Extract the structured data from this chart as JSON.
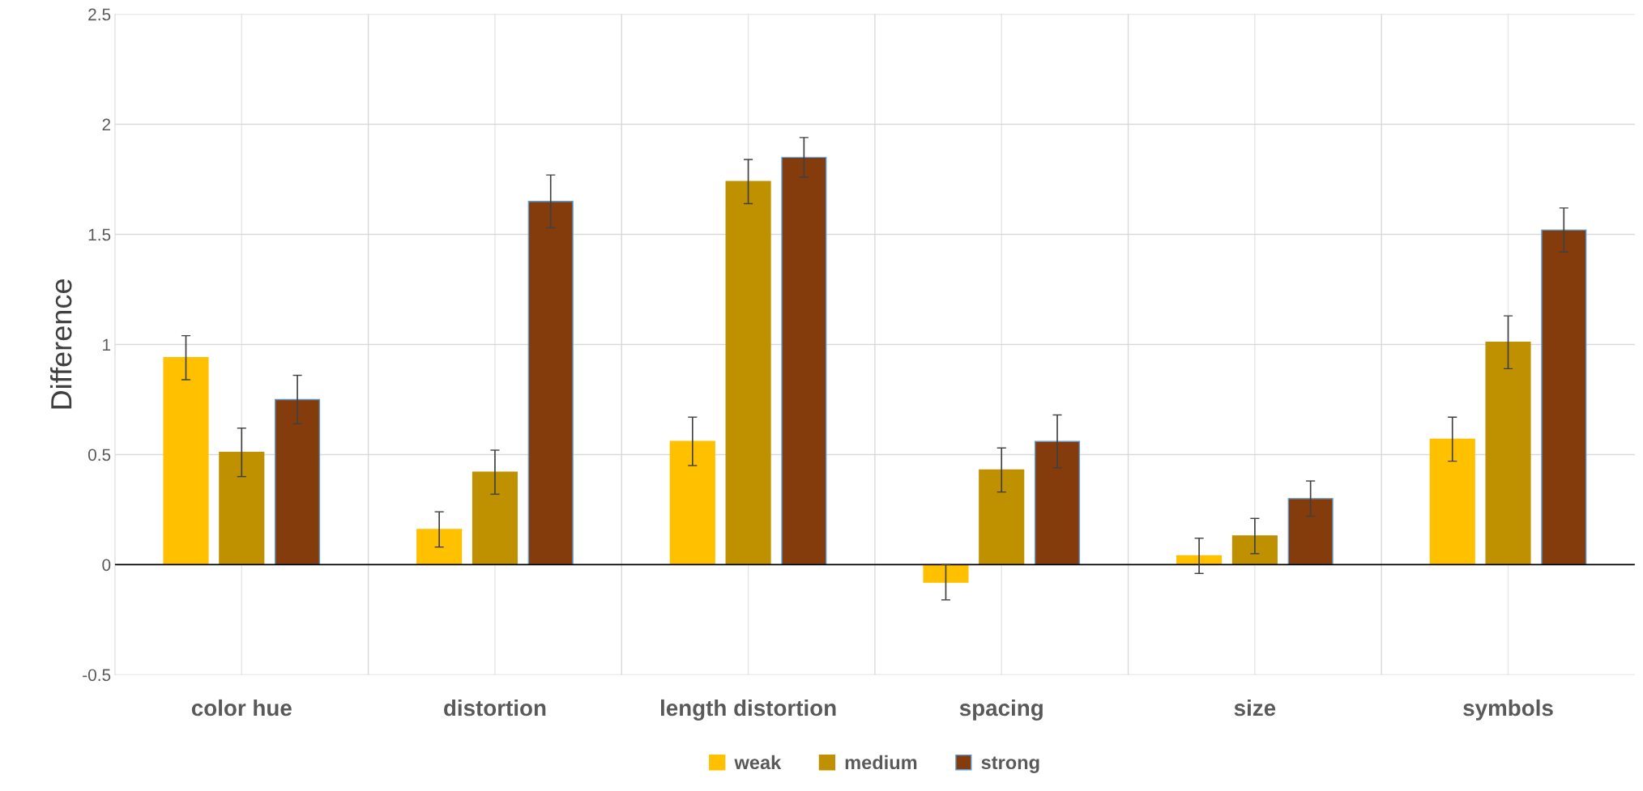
{
  "chart_data": {
    "type": "bar",
    "ylabel": "Difference",
    "categories": [
      "color hue",
      "distortion",
      "length distortion",
      "spacing",
      "size",
      "symbols"
    ],
    "series": [
      {
        "name": "weak",
        "color": "#ffc000",
        "values": [
          0.94,
          0.16,
          0.56,
          -0.08,
          0.04,
          0.57
        ],
        "errors": [
          0.1,
          0.08,
          0.11,
          0.08,
          0.08,
          0.1
        ]
      },
      {
        "name": "medium",
        "color": "#bf9000",
        "values": [
          0.51,
          0.42,
          1.74,
          0.43,
          0.13,
          1.01
        ],
        "errors": [
          0.11,
          0.1,
          0.1,
          0.1,
          0.08,
          0.12
        ]
      },
      {
        "name": "strong",
        "color": "#843c0c",
        "values": [
          0.75,
          1.65,
          1.85,
          0.56,
          0.3,
          1.52
        ],
        "errors": [
          0.11,
          0.12,
          0.09,
          0.12,
          0.08,
          0.1
        ]
      }
    ],
    "ylim": [
      -0.5,
      2.5
    ],
    "yticks": [
      -0.5,
      0,
      0.5,
      1,
      1.5,
      2,
      2.5
    ],
    "grid": true,
    "legend": "bottom"
  }
}
